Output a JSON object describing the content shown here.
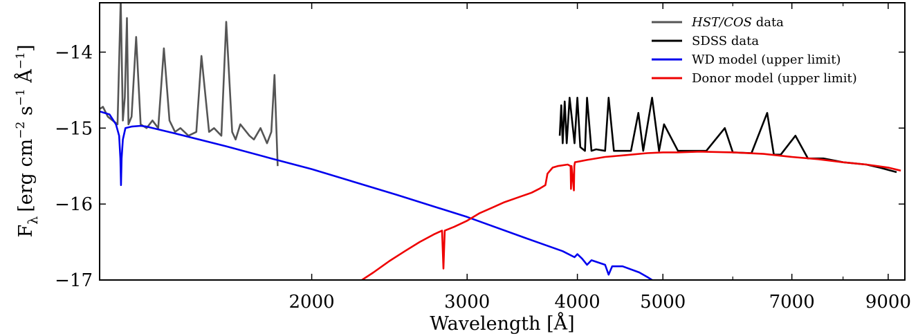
{
  "chart_data": {
    "type": "line",
    "xlabel": "Wavelength [Å]",
    "ylabel": "F_λ [erg cm^−2 s^−1 Å^−1]",
    "ylabel_parts": {
      "f": "F",
      "lambda": "λ",
      "erg": "[erg cm",
      "neg2": "−2",
      "s": " s",
      "neg1a": "−1",
      "ang": " Å",
      "neg1b": "−1",
      "close": "]"
    },
    "x_scale": "log",
    "xlim": [
      1150,
      9400
    ],
    "ylim": [
      -17,
      -13.35
    ],
    "x_ticks": [
      {
        "value": 2000,
        "label": "2000"
      },
      {
        "value": 3000,
        "label": "3000"
      },
      {
        "value": 4000,
        "label": "4000"
      },
      {
        "value": 5000,
        "label": "5000"
      },
      {
        "value": 7000,
        "label": "7000"
      },
      {
        "value": 9000,
        "label": "9000"
      }
    ],
    "x_minor_ticks": [
      6000,
      8000
    ],
    "y_ticks": [
      {
        "value": -14,
        "label": "−14"
      },
      {
        "value": -15,
        "label": "−15"
      },
      {
        "value": -16,
        "label": "−16"
      },
      {
        "value": -17,
        "label": "−17"
      }
    ],
    "grid": false,
    "legend_position": "top-right",
    "legend": [
      {
        "label": "HST/COS",
        "suffix": " data",
        "italic": true,
        "color": "#555555"
      },
      {
        "label": "SDSS data",
        "suffix": "",
        "italic": false,
        "color": "#000000"
      },
      {
        "label": "WD model (upper limit)",
        "suffix": "",
        "italic": false,
        "color": "#0000ee"
      },
      {
        "label": "Donor model (upper limit)",
        "suffix": "",
        "italic": false,
        "color": "#ee0000"
      }
    ],
    "series": [
      {
        "name": "HST/COS data",
        "color": "#555555",
        "x": [
          1150,
          1160,
          1175,
          1190,
          1205,
          1215,
          1222,
          1228,
          1235,
          1240,
          1250,
          1265,
          1280,
          1300,
          1320,
          1340,
          1360,
          1380,
          1400,
          1420,
          1450,
          1480,
          1500,
          1530,
          1550,
          1580,
          1600,
          1625,
          1640,
          1660,
          1700,
          1720,
          1750,
          1780,
          1800,
          1815,
          1830
        ],
        "y": [
          -14.75,
          -14.72,
          -14.85,
          -14.9,
          -14.95,
          -13.3,
          -14.9,
          -14.6,
          -13.55,
          -14.95,
          -14.85,
          -13.8,
          -14.95,
          -15.0,
          -14.9,
          -15.0,
          -13.95,
          -14.9,
          -15.05,
          -15.0,
          -15.1,
          -15.05,
          -14.05,
          -15.05,
          -15.0,
          -15.1,
          -13.6,
          -15.05,
          -15.15,
          -14.95,
          -15.1,
          -15.15,
          -15.0,
          -15.2,
          -15.05,
          -14.3,
          -15.5
        ]
      },
      {
        "name": "SDSS data",
        "color": "#000000",
        "x": [
          3820,
          3835,
          3850,
          3870,
          3890,
          3920,
          3970,
          4000,
          4030,
          4080,
          4102,
          4150,
          4200,
          4300,
          4340,
          4400,
          4500,
          4600,
          4690,
          4750,
          4861,
          4950,
          5015,
          5200,
          5400,
          5600,
          5876,
          6000,
          6300,
          6563,
          6678,
          6800,
          7065,
          7300,
          7600,
          8000,
          8500,
          8800,
          9000,
          9200
        ],
        "y": [
          -15.1,
          -14.7,
          -15.2,
          -14.65,
          -15.2,
          -14.6,
          -15.2,
          -14.6,
          -15.25,
          -15.3,
          -14.6,
          -15.3,
          -15.28,
          -15.3,
          -14.6,
          -15.3,
          -15.3,
          -15.3,
          -14.8,
          -15.3,
          -14.6,
          -15.3,
          -14.95,
          -15.3,
          -15.3,
          -15.3,
          -15.0,
          -15.32,
          -15.33,
          -14.8,
          -15.35,
          -15.35,
          -15.1,
          -15.4,
          -15.4,
          -15.45,
          -15.48,
          -15.52,
          -15.55,
          -15.58
        ]
      },
      {
        "name": "WD model (upper limit)",
        "color": "#0000ee",
        "x": [
          1150,
          1180,
          1200,
          1210,
          1214,
          1216,
          1218,
          1222,
          1230,
          1250,
          1280,
          1300,
          1400,
          1600,
          1800,
          2000,
          2500,
          3000,
          3500,
          3850,
          3970,
          4000,
          4050,
          4102,
          4150,
          4300,
          4340,
          4380,
          4500,
          4700,
          4800,
          4861,
          4950,
          5050
        ],
        "y": [
          -14.78,
          -14.82,
          -14.95,
          -15.1,
          -15.4,
          -15.75,
          -15.4,
          -15.15,
          -15.0,
          -14.98,
          -14.97,
          -14.98,
          -15.07,
          -15.24,
          -15.4,
          -15.54,
          -15.88,
          -16.17,
          -16.45,
          -16.62,
          -16.7,
          -16.66,
          -16.72,
          -16.8,
          -16.74,
          -16.8,
          -16.93,
          -16.82,
          -16.82,
          -16.9,
          -16.96,
          -17.0,
          -17.1,
          -17.0
        ]
      },
      {
        "name": "Donor model (upper limit)",
        "color": "#ee0000",
        "x": [
          2280,
          2350,
          2450,
          2550,
          2650,
          2750,
          2810,
          2820,
          2830,
          2900,
          3000,
          3100,
          3200,
          3300,
          3450,
          3550,
          3620,
          3680,
          3700,
          3750,
          3800,
          3900,
          3930,
          3934,
          3940,
          3964,
          3968,
          3975,
          4100,
          4300,
          4500,
          4800,
          5000,
          5200,
          5500,
          6000,
          6500,
          7000,
          7500,
          8000,
          8500,
          9000,
          9300
        ],
        "y": [
          -17.0,
          -16.9,
          -16.75,
          -16.62,
          -16.5,
          -16.4,
          -16.35,
          -16.85,
          -16.35,
          -16.3,
          -16.22,
          -16.12,
          -16.05,
          -15.98,
          -15.9,
          -15.85,
          -15.8,
          -15.75,
          -15.6,
          -15.52,
          -15.5,
          -15.48,
          -15.5,
          -15.8,
          -15.5,
          -15.82,
          -15.5,
          -15.45,
          -15.42,
          -15.38,
          -15.36,
          -15.33,
          -15.32,
          -15.32,
          -15.31,
          -15.32,
          -15.34,
          -15.38,
          -15.41,
          -15.45,
          -15.48,
          -15.52,
          -15.56
        ]
      }
    ]
  }
}
